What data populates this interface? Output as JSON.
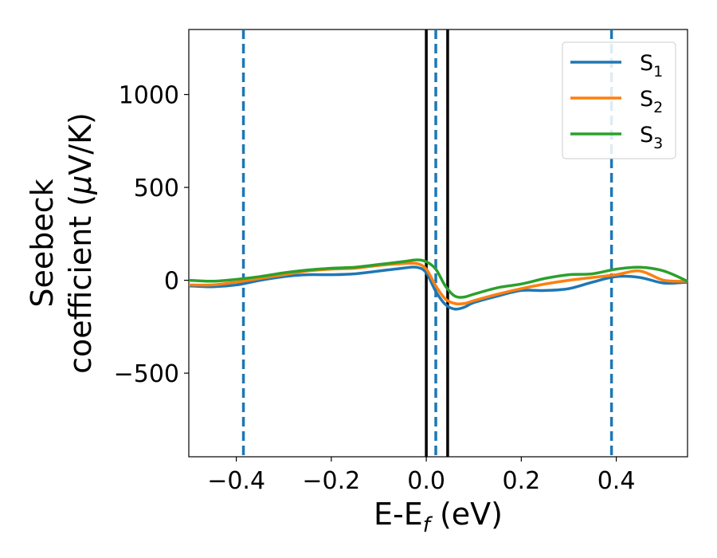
{
  "chart_data": {
    "type": "line",
    "xlabel": "E-E",
    "xlabel_sub": "f",
    "xlabel_unit": " (eV)",
    "ylabel_line1": "Seebeck",
    "ylabel_line2": "coefficient  (",
    "ylabel_mu": "μ",
    "ylabel_unit": "V/K)",
    "xlim": [
      -0.5,
      0.55
    ],
    "ylim": [
      -950,
      1350
    ],
    "xticks": [
      -0.4,
      -0.2,
      0.0,
      0.2,
      0.4
    ],
    "xtick_labels": [
      "−0.4",
      "−0.2",
      "0.0",
      "0.2",
      "0.4"
    ],
    "yticks": [
      -500,
      0,
      500,
      1000
    ],
    "ytick_labels": [
      "−500",
      "0",
      "500",
      "1000"
    ],
    "grid": false,
    "legend_position": "top-right",
    "vlines_dashed": {
      "x": [
        -0.385,
        0.02,
        0.39
      ],
      "color": "#1f77b4"
    },
    "vlines_solid": {
      "x": [
        0.0,
        0.045
      ],
      "color": "#000000"
    },
    "series": [
      {
        "name": "S",
        "sub": "1",
        "color": "#1f77b4",
        "x": [
          -0.5,
          -0.45,
          -0.4,
          -0.35,
          -0.3,
          -0.25,
          -0.2,
          -0.15,
          -0.1,
          -0.05,
          -0.02,
          0.0,
          0.02,
          0.04,
          0.06,
          0.08,
          0.1,
          0.15,
          0.2,
          0.25,
          0.3,
          0.35,
          0.4,
          0.45,
          0.5,
          0.55
        ],
        "y": [
          -30,
          -35,
          -25,
          0,
          20,
          30,
          30,
          35,
          50,
          65,
          70,
          40,
          -60,
          -130,
          -155,
          -145,
          -120,
          -85,
          -55,
          -55,
          -45,
          -10,
          20,
          15,
          -15,
          -10
        ]
      },
      {
        "name": "S",
        "sub": "2",
        "color": "#ff7f0e",
        "x": [
          -0.5,
          -0.45,
          -0.4,
          -0.35,
          -0.3,
          -0.25,
          -0.2,
          -0.15,
          -0.1,
          -0.05,
          -0.02,
          0.0,
          0.02,
          0.04,
          0.06,
          0.08,
          0.1,
          0.15,
          0.2,
          0.25,
          0.3,
          0.35,
          0.4,
          0.45,
          0.5,
          0.55
        ],
        "y": [
          -25,
          -25,
          -10,
          10,
          30,
          50,
          60,
          65,
          80,
          90,
          90,
          60,
          -30,
          -100,
          -125,
          -125,
          -110,
          -75,
          -45,
          -20,
          0,
          15,
          30,
          50,
          0,
          -5
        ]
      },
      {
        "name": "S",
        "sub": "3",
        "color": "#2ca02c",
        "x": [
          -0.5,
          -0.45,
          -0.4,
          -0.35,
          -0.3,
          -0.25,
          -0.2,
          -0.15,
          -0.1,
          -0.05,
          -0.02,
          0.0,
          0.02,
          0.04,
          0.06,
          0.08,
          0.1,
          0.15,
          0.2,
          0.25,
          0.3,
          0.35,
          0.4,
          0.45,
          0.5,
          0.55
        ],
        "y": [
          0,
          -5,
          5,
          20,
          40,
          55,
          65,
          70,
          85,
          100,
          110,
          100,
          60,
          -30,
          -85,
          -90,
          -75,
          -40,
          -20,
          10,
          30,
          35,
          60,
          70,
          50,
          -5
        ]
      }
    ]
  }
}
